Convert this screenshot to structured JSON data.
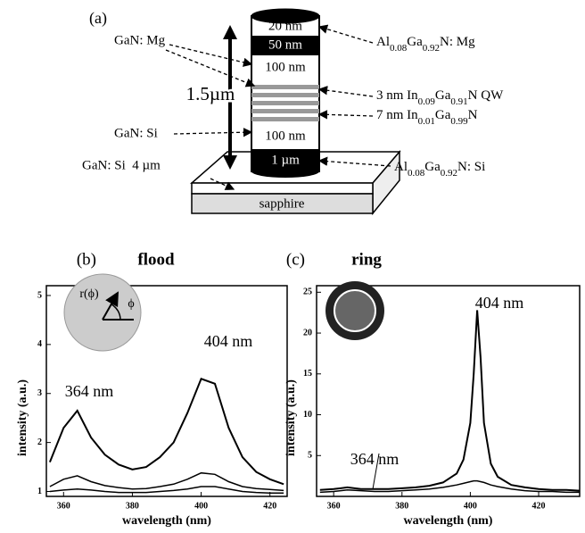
{
  "diagram": {
    "label": "(a)",
    "layers": [
      "20 nm",
      "50 nm",
      "100 nm",
      "100 nm",
      "1 µm"
    ],
    "thickness": "1.5µm",
    "substrate": "sapphire",
    "left_labels": [
      "GaN: Mg",
      "GaN: Si",
      "GaN: Si  4 µm"
    ],
    "right_labels": [
      {
        "parts": [
          "Al",
          "0.08",
          "Ga",
          "0.92",
          "N: Mg"
        ]
      },
      {
        "parts": [
          "3 nm In",
          "0.09",
          "Ga",
          "0.91",
          "N QW"
        ]
      },
      {
        "parts": [
          "7 nm In",
          "0.01",
          "Ga",
          "0.99",
          "N"
        ]
      },
      {
        "parts": [
          "Al",
          "0.08",
          "Ga",
          "0.92",
          "N: Si"
        ]
      }
    ]
  },
  "chart_data": [
    {
      "type": "line",
      "panel_label": "(b)",
      "title": "flood",
      "xlabel": "wavelength (nm)",
      "ylabel": "intensity (a.u.)",
      "x": [
        356,
        360,
        364,
        368,
        372,
        376,
        380,
        384,
        388,
        392,
        396,
        400,
        404,
        408,
        412,
        416,
        420,
        424
      ],
      "series": [
        {
          "color": "#000000",
          "values": [
            1.6,
            2.3,
            2.65,
            2.1,
            1.75,
            1.55,
            1.45,
            1.5,
            1.7,
            2.0,
            2.6,
            3.3,
            3.2,
            2.3,
            1.7,
            1.4,
            1.25,
            1.15
          ]
        },
        {
          "color": "#000000",
          "values": [
            1.1,
            1.25,
            1.32,
            1.2,
            1.12,
            1.08,
            1.05,
            1.06,
            1.1,
            1.15,
            1.25,
            1.38,
            1.35,
            1.2,
            1.1,
            1.06,
            1.04,
            1.02
          ]
        },
        {
          "color": "#000000",
          "values": [
            1.0,
            1.03,
            1.05,
            1.03,
            1.0,
            0.98,
            0.98,
            0.98,
            1.0,
            1.02,
            1.05,
            1.1,
            1.1,
            1.05,
            1.0,
            0.98,
            0.97,
            0.97
          ]
        }
      ],
      "xlim": [
        355,
        425
      ],
      "ylim": [
        0.9,
        5.2
      ],
      "xticks": [
        360,
        380,
        400,
        420
      ],
      "yticks": [
        1,
        2,
        3,
        4,
        5
      ],
      "annotations": [
        "364 nm",
        "404 nm"
      ],
      "inset_labels": [
        "r(ϕ)",
        "ϕ"
      ]
    },
    {
      "type": "line",
      "panel_label": "(c)",
      "title": "ring",
      "xlabel": "wavelength (nm)",
      "ylabel": "intensity (a.u.)",
      "x": [
        356,
        360,
        364,
        368,
        372,
        376,
        380,
        384,
        388,
        392,
        396,
        398,
        400,
        401,
        402,
        403,
        404,
        406,
        408,
        412,
        416,
        420,
        424,
        428,
        432
      ],
      "series": [
        {
          "color": "#000000",
          "values": [
            0.8,
            0.9,
            1.1,
            0.9,
            0.9,
            0.9,
            1.0,
            1.1,
            1.3,
            1.7,
            2.8,
            4.5,
            9,
            15,
            22.8,
            17,
            9,
            4,
            2.4,
            1.4,
            1.1,
            0.9,
            0.8,
            0.8,
            0.7
          ]
        },
        {
          "color": "#000000",
          "values": [
            0.5,
            0.6,
            0.8,
            0.7,
            0.6,
            0.6,
            0.7,
            0.8,
            0.9,
            1.1,
            1.4,
            1.6,
            1.8,
            1.9,
            1.9,
            1.8,
            1.7,
            1.4,
            1.2,
            0.9,
            0.7,
            0.6,
            0.6,
            0.5,
            0.5
          ]
        }
      ],
      "xlim": [
        355,
        432
      ],
      "ylim": [
        0,
        25.8
      ],
      "xticks": [
        360,
        380,
        400,
        420
      ],
      "yticks": [
        5,
        10,
        15,
        20,
        25
      ],
      "annotations": [
        "404 nm",
        "364 nm"
      ]
    }
  ]
}
